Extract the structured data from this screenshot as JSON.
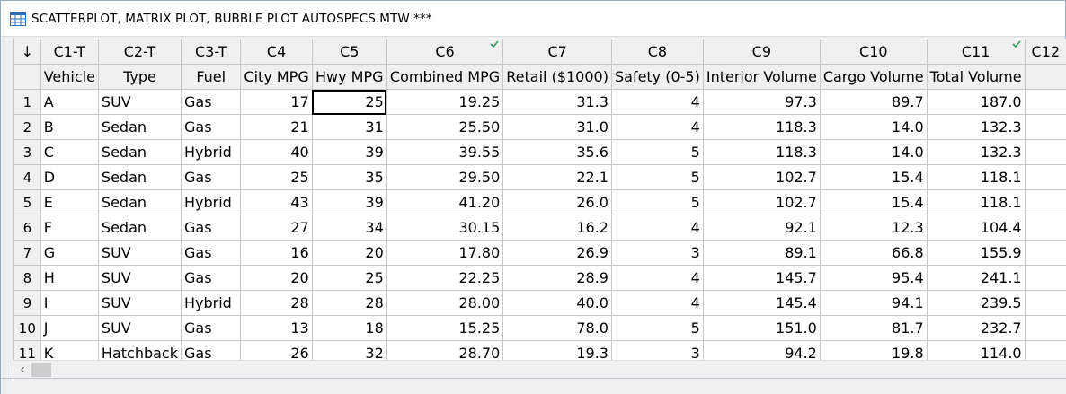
{
  "window": {
    "title": "SCATTERPLOT, MATRIX PLOT, BUBBLE PLOT AUTOSPECS.MTW ***"
  },
  "grid": {
    "corner_symbol": "↓",
    "columns": [
      {
        "id": "C1-T",
        "name": "Vehicle",
        "align": "txt",
        "width": 64
      },
      {
        "id": "C2-T",
        "name": "Type",
        "align": "txt",
        "width": 86
      },
      {
        "id": "C3-T",
        "name": "Fuel",
        "align": "txt",
        "width": 78
      },
      {
        "id": "C4",
        "name": "City MPG",
        "align": "num",
        "width": 78
      },
      {
        "id": "C5",
        "name": "Hwy MPG",
        "align": "num",
        "width": 84
      },
      {
        "id": "C6",
        "name": "Combined MPG",
        "align": "num",
        "width": 130,
        "checked": true
      },
      {
        "id": "C7",
        "name": "Retail ($1000)",
        "align": "num",
        "width": 108
      },
      {
        "id": "C8",
        "name": "Safety (0-5)",
        "align": "num",
        "width": 96
      },
      {
        "id": "C9",
        "name": "Interior Volume",
        "align": "num",
        "width": 126
      },
      {
        "id": "C10",
        "name": "Cargo Volume",
        "align": "num",
        "width": 116
      },
      {
        "id": "C11",
        "name": "Total Volume",
        "align": "num",
        "width": 108,
        "checked": true
      },
      {
        "id": "C12",
        "name": "",
        "align": "num",
        "width": 60
      }
    ],
    "rows": [
      {
        "num": "1",
        "cells": [
          "A",
          "SUV",
          "Gas",
          "17",
          "25",
          "19.25",
          "31.3",
          "4",
          "97.3",
          "89.7",
          "187.0",
          ""
        ]
      },
      {
        "num": "2",
        "cells": [
          "B",
          "Sedan",
          "Gas",
          "21",
          "31",
          "25.50",
          "31.0",
          "4",
          "118.3",
          "14.0",
          "132.3",
          ""
        ]
      },
      {
        "num": "3",
        "cells": [
          "C",
          "Sedan",
          "Hybrid",
          "40",
          "39",
          "39.55",
          "35.6",
          "5",
          "118.3",
          "14.0",
          "132.3",
          ""
        ]
      },
      {
        "num": "4",
        "cells": [
          "D",
          "Sedan",
          "Gas",
          "25",
          "35",
          "29.50",
          "22.1",
          "5",
          "102.7",
          "15.4",
          "118.1",
          ""
        ]
      },
      {
        "num": "5",
        "cells": [
          "E",
          "Sedan",
          "Hybrid",
          "43",
          "39",
          "41.20",
          "26.0",
          "5",
          "102.7",
          "15.4",
          "118.1",
          ""
        ]
      },
      {
        "num": "6",
        "cells": [
          "F",
          "Sedan",
          "Gas",
          "27",
          "34",
          "30.15",
          "16.2",
          "4",
          "92.1",
          "12.3",
          "104.4",
          ""
        ]
      },
      {
        "num": "7",
        "cells": [
          "G",
          "SUV",
          "Gas",
          "16",
          "20",
          "17.80",
          "26.9",
          "3",
          "89.1",
          "66.8",
          "155.9",
          ""
        ]
      },
      {
        "num": "8",
        "cells": [
          "H",
          "SUV",
          "Gas",
          "20",
          "25",
          "22.25",
          "28.9",
          "4",
          "145.7",
          "95.4",
          "241.1",
          ""
        ]
      },
      {
        "num": "9",
        "cells": [
          "I",
          "SUV",
          "Hybrid",
          "28",
          "28",
          "28.00",
          "40.0",
          "4",
          "145.4",
          "94.1",
          "239.5",
          ""
        ]
      },
      {
        "num": "10",
        "cells": [
          "J",
          "SUV",
          "Gas",
          "13",
          "18",
          "15.25",
          "78.0",
          "5",
          "151.0",
          "81.7",
          "232.7",
          ""
        ]
      },
      {
        "num": "11",
        "cells": [
          "K",
          "Hatchback",
          "Gas",
          "26",
          "32",
          "28.70",
          "19.3",
          "3",
          "94.2",
          "19.8",
          "114.0",
          ""
        ]
      }
    ],
    "active_cell": {
      "row": 0,
      "col": 4
    },
    "check_color": "#3a9a5b"
  }
}
